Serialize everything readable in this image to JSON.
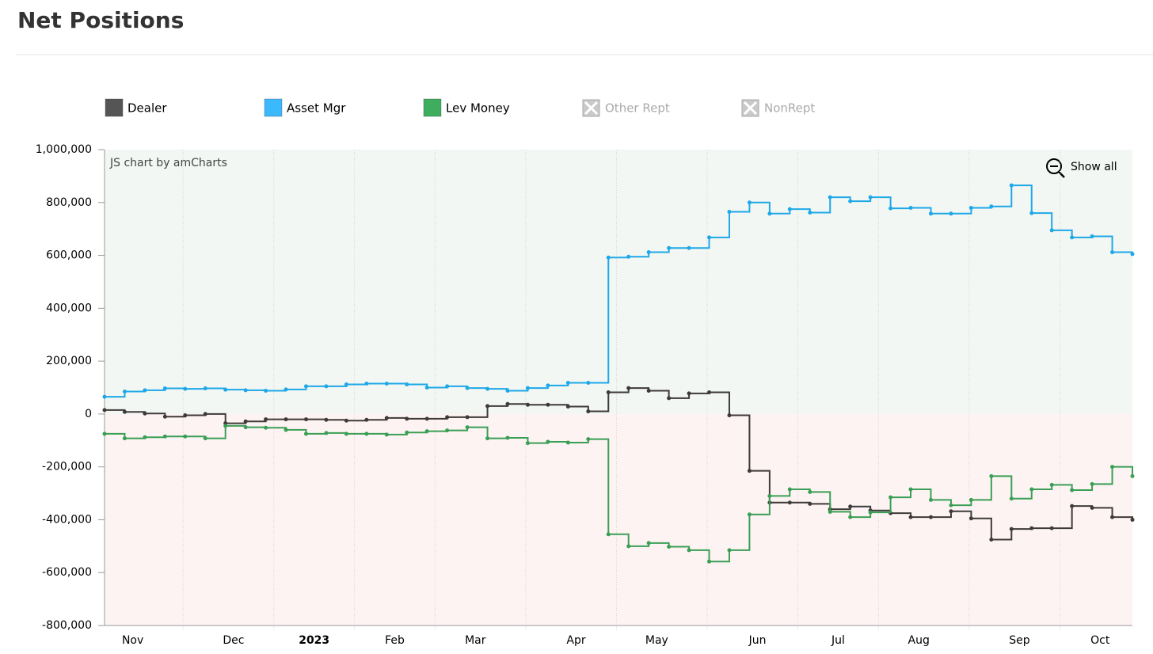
{
  "chart_data": {
    "type": "step",
    "title": "Net Positions",
    "credit": "JS chart by amCharts",
    "zoom_button": "Show all",
    "categories": [
      null,
      "Nov",
      null,
      null,
      null,
      null,
      "Dec",
      null,
      null,
      null,
      "2023",
      null,
      null,
      null,
      "Feb",
      null,
      null,
      null,
      "Mar",
      null,
      null,
      null,
      null,
      "Apr",
      null,
      null,
      null,
      "May",
      null,
      null,
      null,
      null,
      "Jun",
      null,
      null,
      null,
      "Jul",
      null,
      null,
      null,
      "Aug",
      null,
      null,
      null,
      null,
      "Sep",
      null,
      null,
      null,
      "Oct",
      null,
      null
    ],
    "series": [
      {
        "name": "Dealer",
        "color": "#3f3a3a",
        "legend_color": "#555555",
        "values": [
          15000,
          8000,
          2000,
          -10000,
          -5000,
          0,
          -35000,
          -28000,
          -20000,
          -20000,
          -20000,
          -22000,
          -25000,
          -22000,
          -15000,
          -18000,
          -18000,
          -12000,
          -12000,
          30000,
          38000,
          35000,
          35000,
          28000,
          10000,
          82000,
          98000,
          88000,
          60000,
          78000,
          82000,
          -5000,
          -215000,
          -335000,
          -335000,
          -340000,
          -360000,
          -350000,
          -365000,
          -375000,
          -390000,
          -390000,
          -368000,
          -395000,
          -475000,
          -435000,
          -432000,
          -432000,
          -348000,
          -355000,
          -390000,
          -400000
        ]
      },
      {
        "name": "Asset Mgr",
        "color": "#1ea8e8",
        "legend_color": "#3cb9fc",
        "values": [
          65000,
          85000,
          90000,
          97000,
          95000,
          97000,
          92000,
          90000,
          88000,
          93000,
          105000,
          105000,
          112000,
          115000,
          115000,
          112000,
          100000,
          105000,
          98000,
          95000,
          88000,
          98000,
          108000,
          118000,
          118000,
          592000,
          595000,
          612000,
          628000,
          628000,
          668000,
          765000,
          800000,
          758000,
          775000,
          762000,
          820000,
          805000,
          820000,
          778000,
          780000,
          758000,
          758000,
          780000,
          785000,
          865000,
          760000,
          695000,
          668000,
          672000,
          612000,
          605000
        ]
      },
      {
        "name": "Lev Money",
        "color": "#3a9f55",
        "legend_color": "#3fad5e",
        "values": [
          -75000,
          -92000,
          -88000,
          -85000,
          -85000,
          -92000,
          -45000,
          -50000,
          -52000,
          -60000,
          -75000,
          -72000,
          -75000,
          -75000,
          -78000,
          -70000,
          -65000,
          -62000,
          -50000,
          -92000,
          -90000,
          -110000,
          -105000,
          -108000,
          -95000,
          -455000,
          -500000,
          -488000,
          -502000,
          -515000,
          -558000,
          -515000,
          -380000,
          -310000,
          -285000,
          -295000,
          -370000,
          -390000,
          -372000,
          -315000,
          -285000,
          -325000,
          -345000,
          -325000,
          -235000,
          -320000,
          -285000,
          -268000,
          -288000,
          -265000,
          -200000,
          -235000
        ]
      }
    ],
    "legend_disabled": [
      "Other Rept",
      "NonRept"
    ],
    "bold_category": "2023",
    "ylim": [
      -800000,
      1000000
    ],
    "yticks": [
      {
        "value": -800000,
        "label": "-800,000"
      },
      {
        "value": -600000,
        "label": "-600,000"
      },
      {
        "value": -400000,
        "label": "-400,000"
      },
      {
        "value": -200000,
        "label": "-200,000"
      },
      0,
      {
        "value": 200000,
        "label": "200,000"
      },
      {
        "value": 400000,
        "label": "400,000"
      },
      {
        "value": 600000,
        "label": "600,000"
      },
      {
        "value": 800000,
        "label": "800,000"
      },
      {
        "value": 1000000,
        "label": "1,000,000"
      }
    ],
    "positive_band_color": "#f2f7f3",
    "negative_band_color": "#fdf3f2"
  }
}
